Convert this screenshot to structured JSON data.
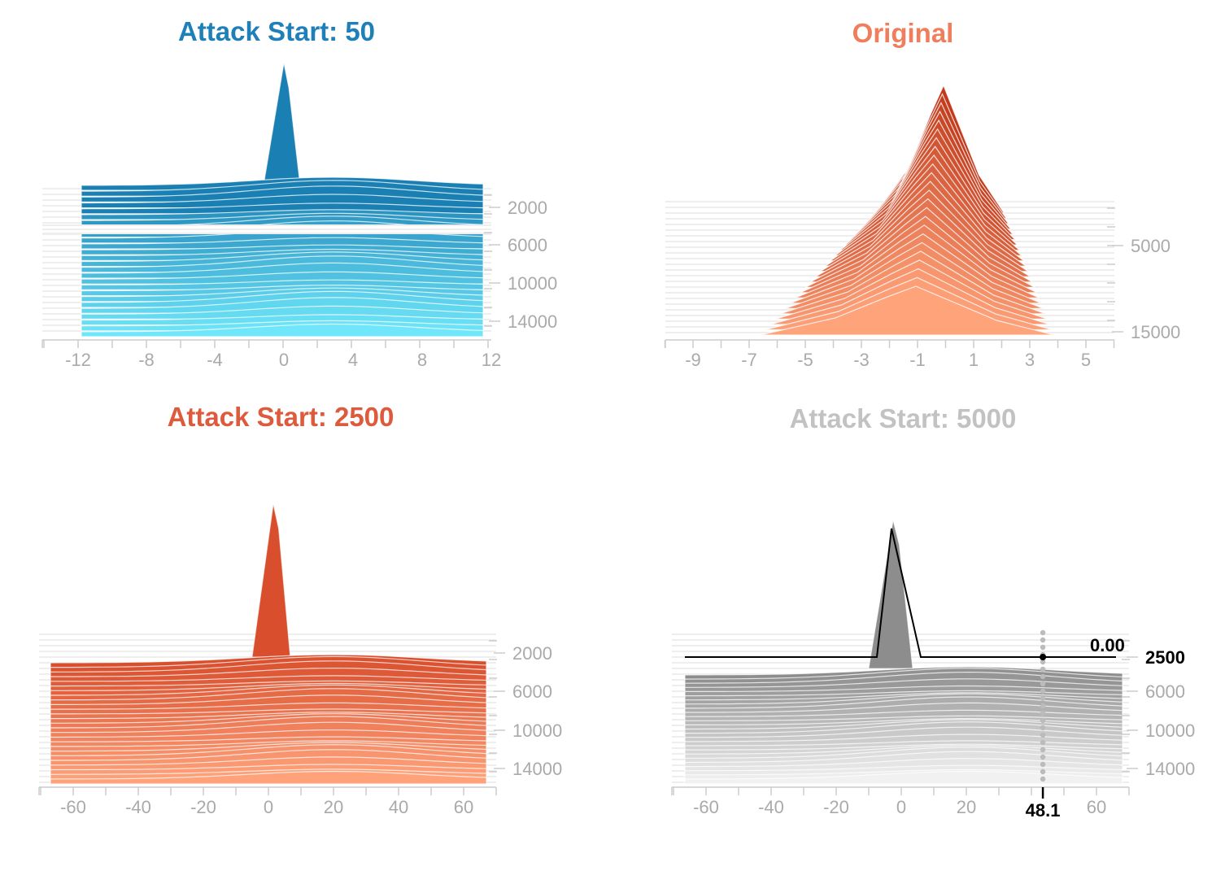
{
  "chart_data": [
    {
      "type": "area",
      "subtype": "ridgeline",
      "title": "Attack Start: 50",
      "title_color": "#1f7fb8",
      "color_top": "#1a7fb3",
      "color_bottom": "#6fe6fa",
      "x_ticks": [
        "-12",
        "-8",
        "-4",
        "0",
        "4",
        "8",
        "12"
      ],
      "xlim": [
        -14,
        12
      ],
      "y_ticks": [
        "2000",
        "6000",
        "10000",
        "14000"
      ],
      "ylim": [
        0,
        15000
      ],
      "peak_x": 0
    },
    {
      "type": "area",
      "subtype": "ridgeline",
      "title": "Original",
      "title_color": "#f07e5c",
      "color_top": "#c13a1b",
      "color_bottom": "#ffa37a",
      "x_ticks": [
        "-9",
        "-7",
        "-5",
        "-3",
        "-1",
        "1",
        "3",
        "5"
      ],
      "xlim": [
        -10,
        6
      ],
      "y_ticks": [
        "5000",
        "15000"
      ],
      "ylim": [
        0,
        15000
      ],
      "peak_x": -0.1
    },
    {
      "type": "area",
      "subtype": "ridgeline",
      "title": "Attack Start: 2500",
      "title_color": "#dd5a3c",
      "color_top": "#d94f2e",
      "color_bottom": "#ffa27a",
      "x_ticks": [
        "-60",
        "-40",
        "-20",
        "0",
        "20",
        "40",
        "60"
      ],
      "xlim": [
        -70,
        70
      ],
      "y_ticks": [
        "2000",
        "6000",
        "10000",
        "14000"
      ],
      "ylim": [
        0,
        15000
      ],
      "peak_x": 2
    },
    {
      "type": "area",
      "subtype": "ridgeline",
      "title": "Attack Start: 5000",
      "title_color": "#c2c2c2",
      "color_top": "#8d8d8d",
      "color_bottom": "#f1f1f1",
      "x_ticks": [
        "-60",
        "-40",
        "-20",
        "0",
        "20",
        "60"
      ],
      "xlim": [
        -70,
        70
      ],
      "y_ticks": [
        "2500",
        "6000",
        "10000",
        "14000"
      ],
      "ylim": [
        0,
        15000
      ],
      "peak_x": -2,
      "hover": {
        "value": "0.00",
        "y_label": "2500",
        "x_label": "48.1",
        "x": 48.1
      }
    }
  ]
}
